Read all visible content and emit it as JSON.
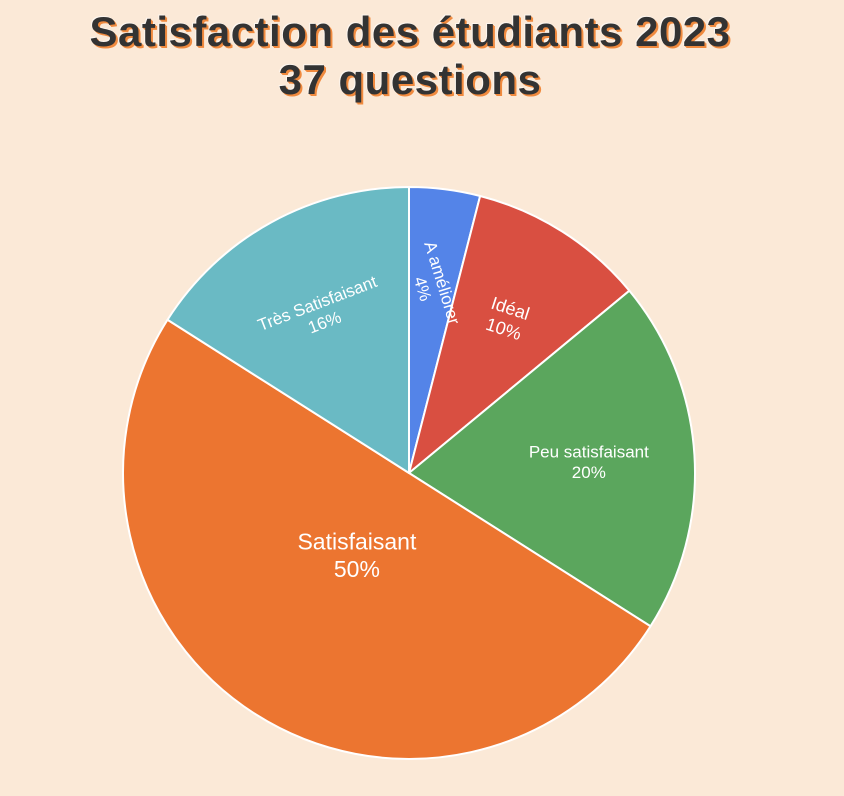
{
  "chart_data": {
    "type": "pie",
    "title_lines": [
      "Satisfaction des étudiants 2023",
      "37 questions"
    ],
    "slices": [
      {
        "label": "A améliorer",
        "value": 4,
        "value_label": "4%",
        "color": "#5484e8"
      },
      {
        "label": "Idéal",
        "value": 10,
        "value_label": "10%",
        "color": "#d94f41"
      },
      {
        "label": "Peu satisfaisant",
        "value": 20,
        "value_label": "20%",
        "color": "#5ba65d"
      },
      {
        "label": "Satisfaisant",
        "value": 50,
        "value_label": "50%",
        "color": "#ec7530"
      },
      {
        "label": "Très Satisfaisant",
        "value": 16,
        "value_label": "16%",
        "color": "#6abac4"
      }
    ],
    "start_direction": "top",
    "direction": "clockwise",
    "legend": "none"
  },
  "colors": {
    "background": "#fbe9d7",
    "title_text": "#333333",
    "title_shadow": "#f08a3e",
    "slice_border": "#ffffff",
    "label_text": "#ffffff"
  }
}
